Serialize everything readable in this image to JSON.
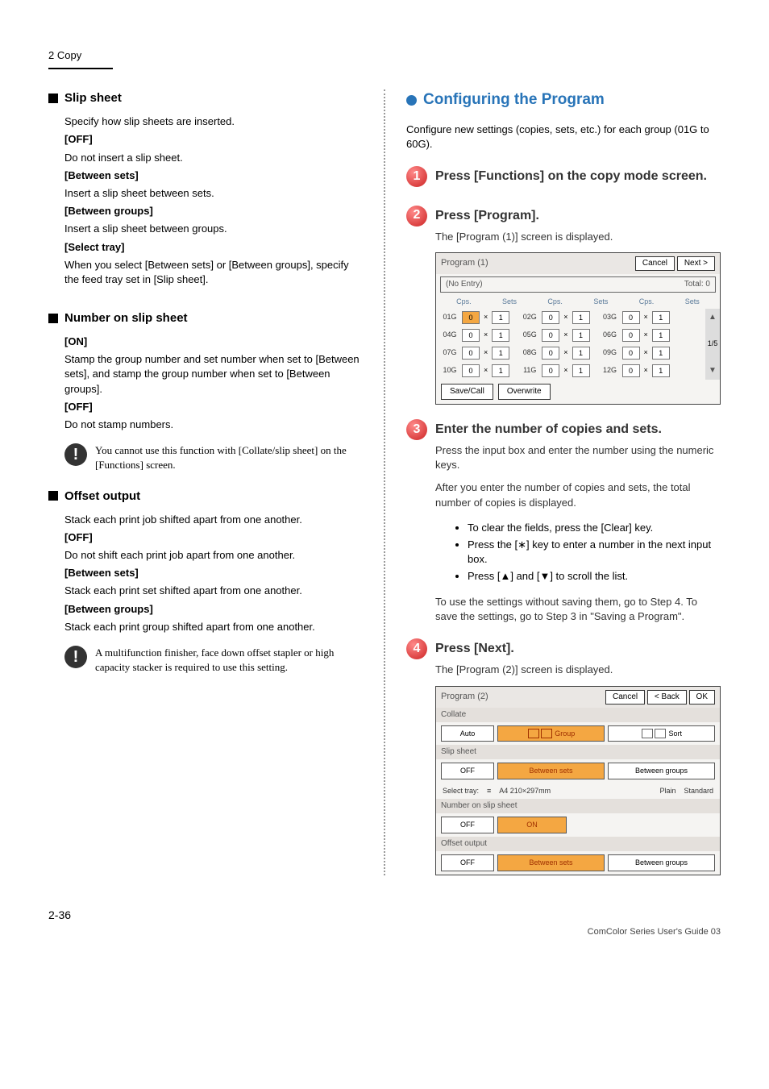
{
  "header": "2 Copy",
  "pageNumber": "2-36",
  "footer": "ComColor Series User's Guide 03",
  "left": {
    "slip": {
      "title": "Slip sheet",
      "intro": "Specify how slip sheets are inserted.",
      "off": {
        "label": "[OFF]",
        "desc": "Do not insert a slip sheet."
      },
      "sets": {
        "label": "[Between sets]",
        "desc": "Insert a slip sheet between sets."
      },
      "groups": {
        "label": "[Between groups]",
        "desc": "Insert a slip sheet between groups."
      },
      "tray": {
        "label": "[Select tray]",
        "desc": "When you select [Between sets] or [Between groups], specify the feed tray set in [Slip sheet]."
      }
    },
    "number": {
      "title": "Number on slip sheet",
      "on": {
        "label": "[ON]",
        "desc": "Stamp the group number and set number when set to [Between sets], and stamp the group number when set to [Between groups]."
      },
      "off": {
        "label": "[OFF]",
        "desc": "Do not stamp numbers."
      },
      "note": "You cannot use this function with [Collate/slip sheet] on the [Functions] screen."
    },
    "offset": {
      "title": "Offset output",
      "intro": "Stack each print job shifted apart from one another.",
      "off": {
        "label": "[OFF]",
        "desc": "Do not shift each print job apart from one another."
      },
      "sets": {
        "label": "[Between sets]",
        "desc": "Stack each print set shifted apart from one another."
      },
      "groups": {
        "label": "[Between groups]",
        "desc": "Stack each print group shifted apart from one another."
      },
      "note": "A multifunction finisher, face down offset stapler or high capacity stacker is required to use this setting."
    }
  },
  "right": {
    "title": "Configuring the Program",
    "intro": "Configure new settings (copies, sets, etc.) for each group (01G to 60G).",
    "step1": {
      "num": "1",
      "title": "Press [Functions] on the copy mode screen."
    },
    "step2": {
      "num": "2",
      "title": "Press [Program].",
      "desc": "The [Program (1)] screen is displayed."
    },
    "step3": {
      "num": "3",
      "title": "Enter the number of copies and sets.",
      "desc1": "Press the input box and enter the number using the numeric keys.",
      "desc2": "After you enter the number of copies and sets, the total number of copies is displayed.",
      "b1": "To clear the fields, press the [Clear] key.",
      "b2": "Press the [∗] key to enter a number in the next input box.",
      "b3": "Press [▲] and [▼] to scroll the list.",
      "desc3": "To use the settings without saving them, go to Step 4. To save the settings, go to Step 3 in \"Saving a Program\"."
    },
    "step4": {
      "num": "4",
      "title": "Press [Next].",
      "desc": "The [Program (2)] screen is displayed."
    }
  },
  "sc1": {
    "title": "Program (1)",
    "cancel": "Cancel",
    "next": "Next >",
    "noentry": "(No Entry)",
    "total": "Total: 0",
    "cps": "Cps.",
    "sets": "Sets",
    "pager": "1/5",
    "rows": [
      [
        {
          "g": "01G",
          "c": "0",
          "s": "1",
          "hl": true
        },
        {
          "g": "02G",
          "c": "0",
          "s": "1"
        },
        {
          "g": "03G",
          "c": "0",
          "s": "1"
        }
      ],
      [
        {
          "g": "04G",
          "c": "0",
          "s": "1"
        },
        {
          "g": "05G",
          "c": "0",
          "s": "1"
        },
        {
          "g": "06G",
          "c": "0",
          "s": "1"
        }
      ],
      [
        {
          "g": "07G",
          "c": "0",
          "s": "1"
        },
        {
          "g": "08G",
          "c": "0",
          "s": "1"
        },
        {
          "g": "09G",
          "c": "0",
          "s": "1"
        }
      ],
      [
        {
          "g": "10G",
          "c": "0",
          "s": "1"
        },
        {
          "g": "11G",
          "c": "0",
          "s": "1"
        },
        {
          "g": "12G",
          "c": "0",
          "s": "1"
        }
      ]
    ],
    "save": "Save/Call",
    "overwrite": "Overwrite"
  },
  "sc2": {
    "title": "Program (2)",
    "cancel": "Cancel",
    "back": "< Back",
    "ok": "OK",
    "collate": "Collate",
    "auto": "Auto",
    "group": "Group",
    "sort": "Sort",
    "slip": "Slip sheet",
    "off": "OFF",
    "bsets": "Between sets",
    "bgroups": "Between groups",
    "trayLbl": "Select tray:",
    "paper": "A4 210×297mm",
    "plain": "Plain",
    "standard": "Standard",
    "num": "Number on slip sheet",
    "on": "ON",
    "offout": "Offset output"
  }
}
